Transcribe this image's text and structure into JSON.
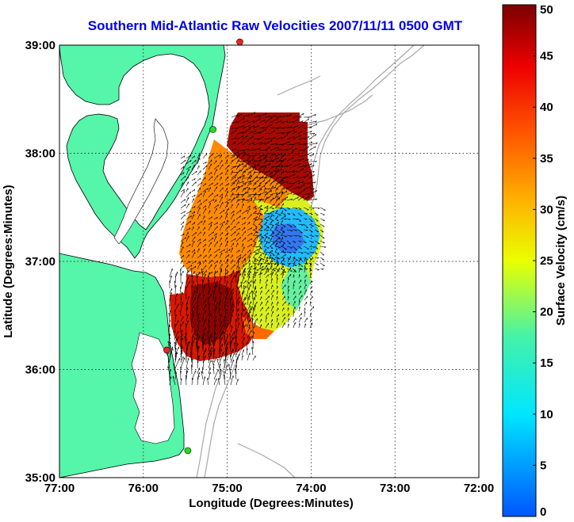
{
  "title": "Southern Mid-Atlantic Raw Velocities 2007/11/11 0500 GMT",
  "axes": {
    "xlabel": "Longitude (Degrees:Minutes)",
    "ylabel": "Latitude (Degrees:Minutes)",
    "x_ticks": [
      "77:00",
      "76:00",
      "75:00",
      "74:00",
      "73:00",
      "72:00"
    ],
    "y_ticks": [
      "39:00",
      "38:00",
      "37:00",
      "36:00",
      "35:00"
    ],
    "grid": "dotted"
  },
  "colorbar": {
    "label": "Surface Velocity (cm/s)",
    "ticks": [
      "0",
      "5",
      "10",
      "15",
      "20",
      "25",
      "30",
      "35",
      "40",
      "45",
      "50"
    ],
    "min": 0,
    "max": 50
  },
  "colors": {
    "land": "#55f5aa",
    "ocean": "#ffffff",
    "title": "#0000ee",
    "bathymetry": "#a8a8a8",
    "station_green": "#22dd22",
    "station_red": "#ee2222"
  },
  "stations": [
    {
      "lon": -74.85,
      "lat": 39.03,
      "color": "red"
    },
    {
      "lon": -75.17,
      "lat": 38.22,
      "color": "green"
    },
    {
      "lon": -75.72,
      "lat": 36.18,
      "color": "red"
    },
    {
      "lon": -75.47,
      "lat": 35.25,
      "color": "green"
    }
  ]
}
